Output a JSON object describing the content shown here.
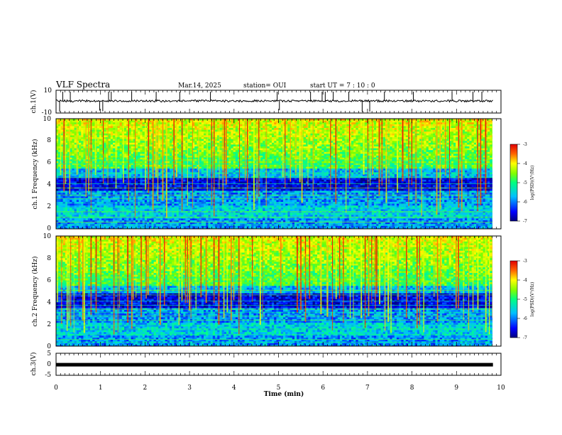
{
  "header": {
    "title": "VLF Spectra",
    "date": "Mar.14, 2025",
    "station": "station= OUI",
    "start": "start  UT =   7 : 10 : 0"
  },
  "chart_data": [
    {
      "id": "ch1-waveform",
      "type": "line",
      "ylabel": "ch.1(V)",
      "ylim": [
        -10,
        10
      ],
      "yticks": [
        "10",
        "-10"
      ],
      "xlim": [
        0,
        10
      ],
      "baseline": 0,
      "spikes": [
        0.08,
        0.15,
        0.32,
        0.98,
        1.05,
        1.18,
        1.24,
        1.7,
        2.25,
        2.78,
        3.47,
        4.97,
        5.02,
        5.72,
        5.98,
        6.05,
        6.23,
        6.58,
        6.88,
        7.05,
        7.38,
        8.03,
        8.9,
        9.37,
        9.57
      ]
    },
    {
      "id": "ch1-spectrogram",
      "type": "heatmap",
      "ylabel": "ch.1  Frequency  (kHz)",
      "ylim": [
        0,
        10
      ],
      "yticks": [
        "0",
        "2",
        "4",
        "6",
        "8",
        "10"
      ],
      "xlim": [
        0,
        9.85
      ],
      "colorbar": {
        "label": "log(PSD)(V²/Hz)",
        "range": [
          -7,
          -3
        ],
        "ticks": [
          "-3",
          "-4",
          "-5",
          "-6",
          "-7"
        ]
      }
    },
    {
      "id": "ch2-spectrogram",
      "type": "heatmap",
      "ylabel": "ch.2  Frequency  (kHz)",
      "ylim": [
        0,
        10
      ],
      "yticks": [
        "0",
        "2",
        "4",
        "6",
        "8",
        "10"
      ],
      "xlim": [
        0,
        9.85
      ],
      "colorbar": {
        "label": "log(PSD)(V²/Hz)",
        "range": [
          -7,
          -3
        ],
        "ticks": [
          "-3",
          "-4",
          "-5",
          "-6",
          "-7"
        ]
      }
    },
    {
      "id": "ch3-waveform",
      "type": "line",
      "ylabel": "ch.3(V)",
      "ylim": [
        -5,
        5
      ],
      "yticks": [
        "5",
        "0",
        "-5"
      ],
      "xlim": [
        0,
        10
      ],
      "baseline": -0.2
    }
  ],
  "xaxis": {
    "label": "Time  (min)",
    "ticks": [
      "0",
      "1",
      "2",
      "3",
      "4",
      "5",
      "6",
      "7",
      "8",
      "9",
      "10"
    ],
    "range": [
      0,
      10
    ]
  },
  "colors": {
    "background": "#0000a0",
    "trace": "#000000"
  }
}
